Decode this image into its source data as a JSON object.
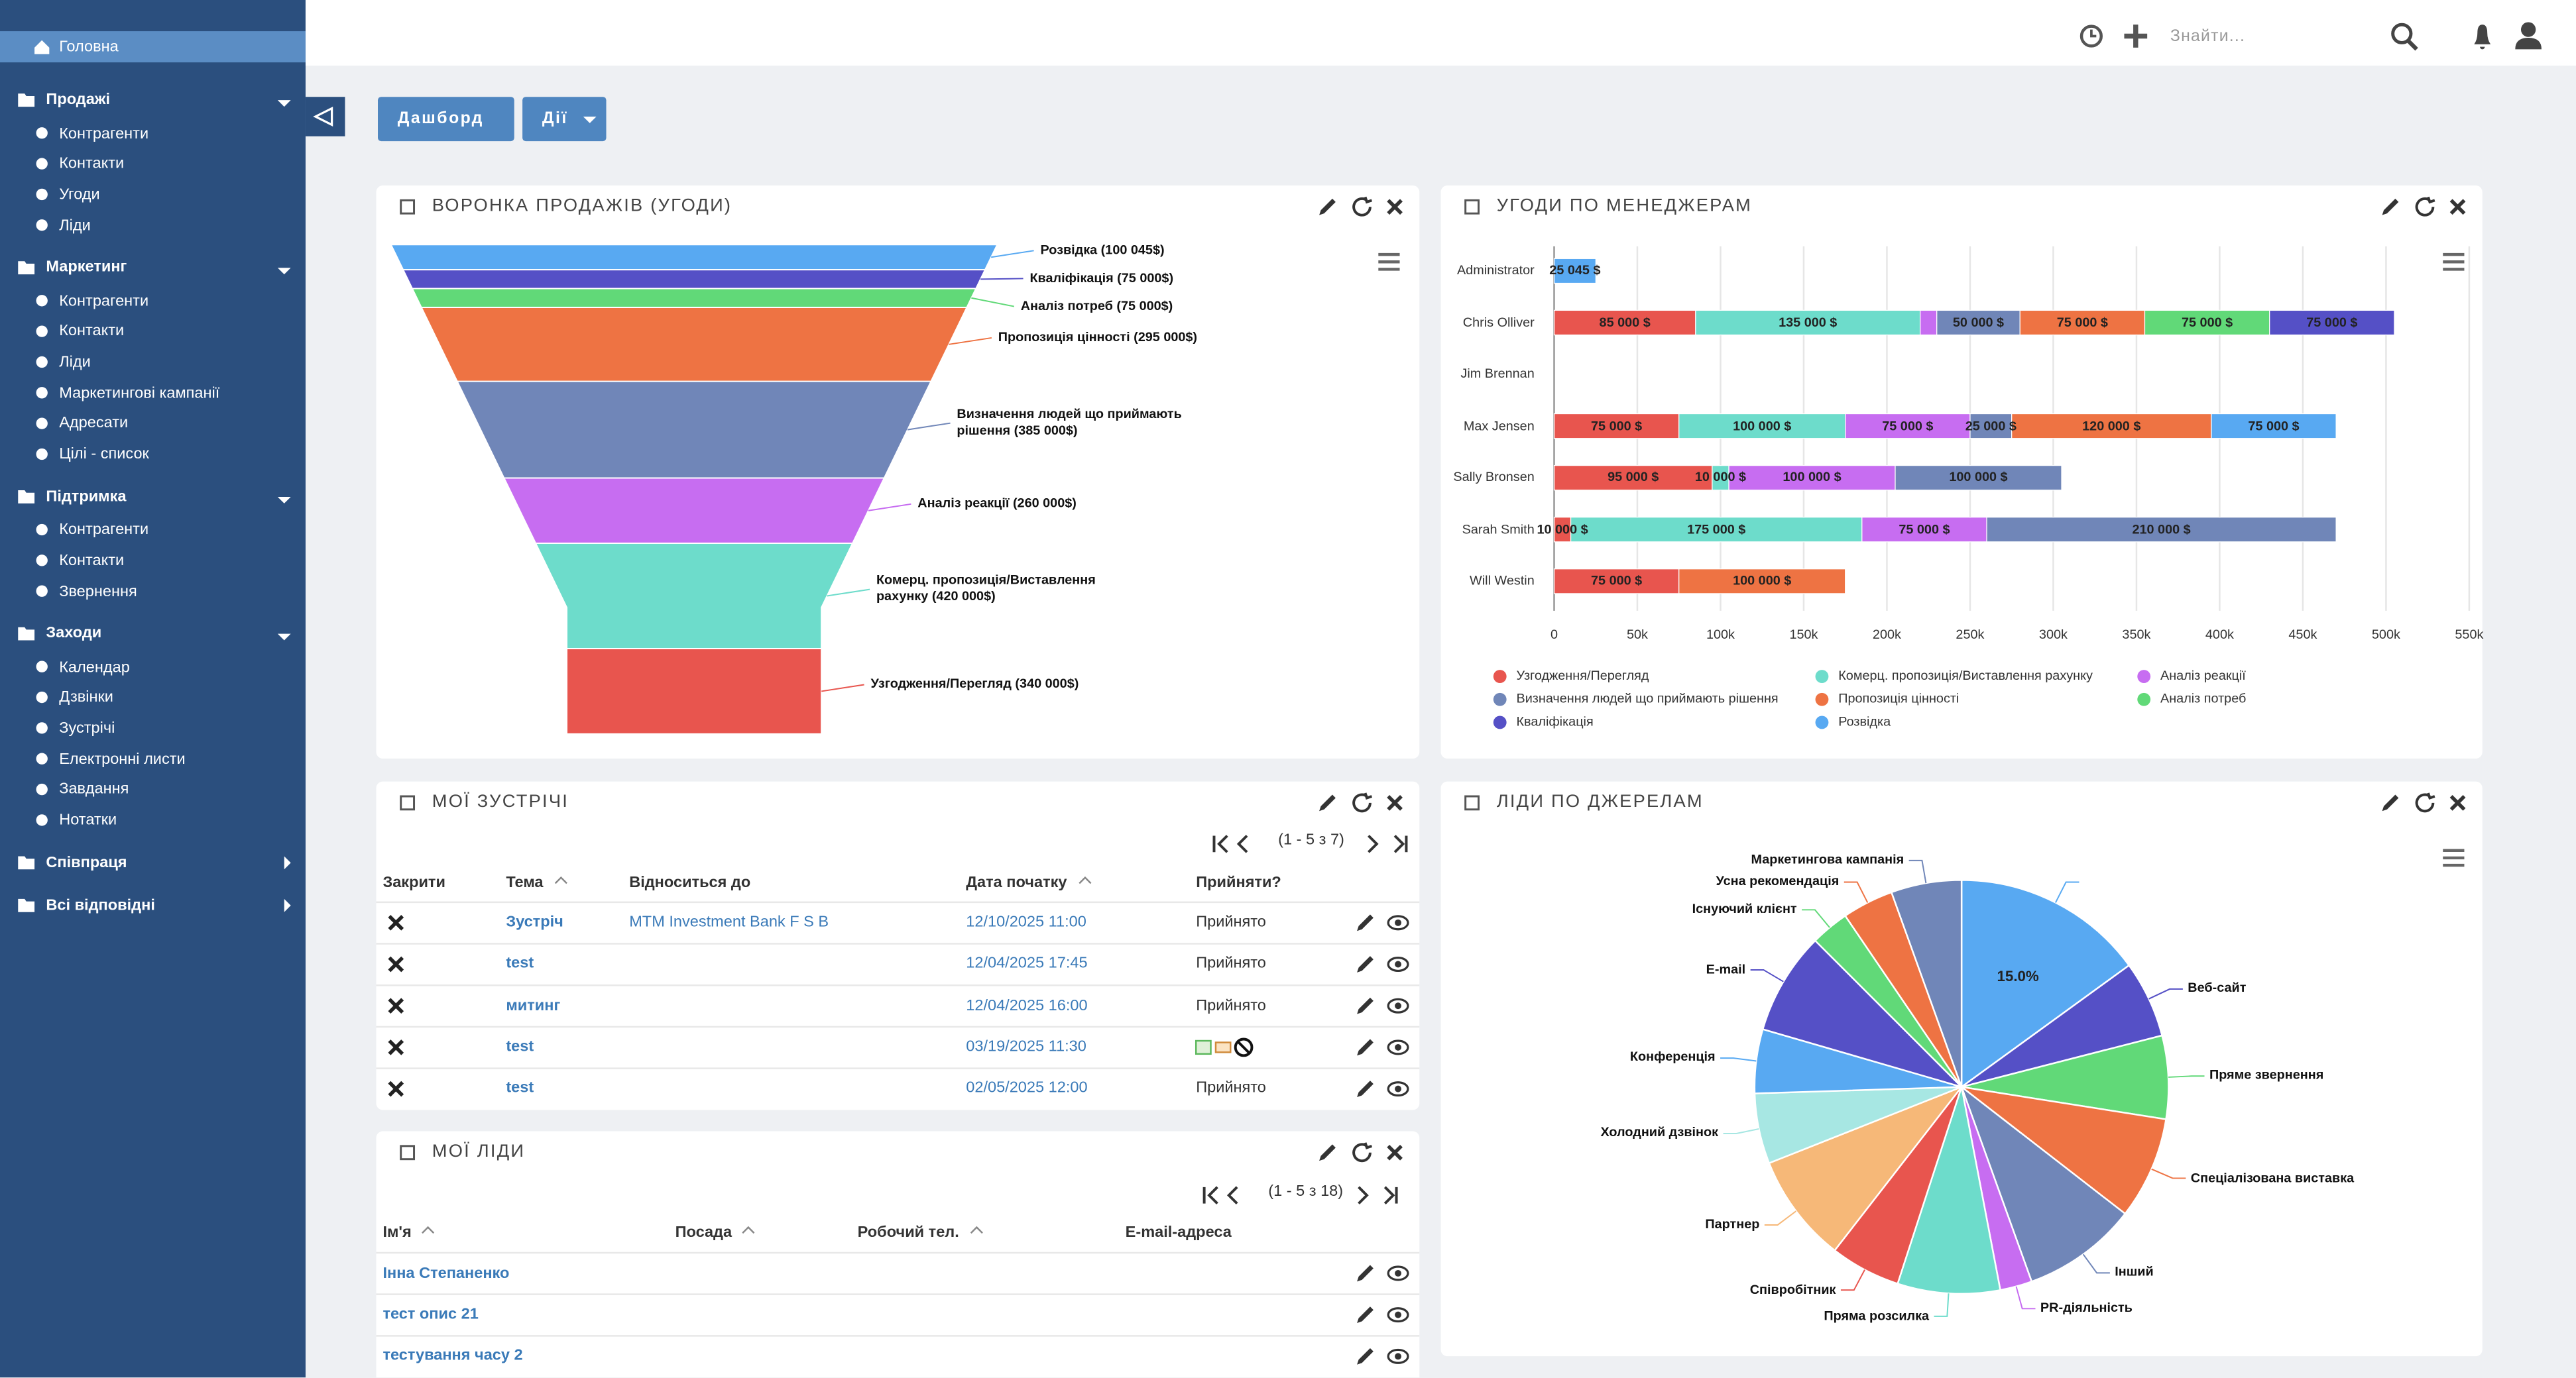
{
  "sidebar": {
    "home": "Головна",
    "groups": [
      {
        "title": "Продажі",
        "items": [
          "Контрагенти",
          "Контакти",
          "Угоди",
          "Ліди"
        ]
      },
      {
        "title": "Маркетинг",
        "items": [
          "Контрагенти",
          "Контакти",
          "Ліди",
          "Маркетингові кампанії",
          "Адресати",
          "Цілі - список"
        ]
      },
      {
        "title": "Підтримка",
        "items": [
          "Контрагенти",
          "Контакти",
          "Звернення"
        ]
      },
      {
        "title": "Заходи",
        "items": [
          "Календар",
          "Дзвінки",
          "Зустрічі",
          "Електронні листи",
          "Завдання",
          "Нотатки"
        ]
      },
      {
        "title": "Співпраця"
      },
      {
        "title": "Всі відповідні"
      }
    ]
  },
  "header": {
    "search_placeholder": "Знайти..."
  },
  "toolbar": {
    "dashboard": "Дашборд",
    "actions": "Дії"
  },
  "sales_funnel": {
    "title": "ВОРОНКА ПРОДАЖІВ (УГОДИ)",
    "chart": {
      "type": "funnel",
      "labels": [
        "Розвідка (100 045$)",
        "Кваліфікація (75 000$)",
        "Аналіз потреб (75 000$)",
        "Пропозиція цінності (295 000$)",
        "Визначення людей що приймають рішення (385 000$)",
        "Аналіз реакції (260 000$)",
        "Комерц. пропозиція/Виставлення рахунку (420 000$)",
        "Узгодження/Перегляд (340 000$)"
      ],
      "values": [
        100045,
        75000,
        75000,
        295000,
        385000,
        260000,
        420000,
        340000
      ],
      "colors": [
        "#58a9f2",
        "#5550c6",
        "#61d978",
        "#ee7343",
        "#7086b8",
        "#c76df1",
        "#6ddccb",
        "#e8554e"
      ]
    }
  },
  "deals_by_manager": {
    "title": "УГОДИ ПО МЕНЕДЖЕРАМ",
    "chart": {
      "type": "bar",
      "orientation": "horizontal",
      "stacked": true,
      "categories": [
        "Administrator",
        "Chris Olliver",
        "Jim Brennan",
        "Max Jensen",
        "Sally Bronsen",
        "Sarah Smith",
        "Will Westin"
      ],
      "series": [
        {
          "name": "Узгодження/Перегляд",
          "color": "#e8554e",
          "values": [
            null,
            85000,
            null,
            75000,
            95000,
            10000,
            75000
          ],
          "value_labels": [
            null,
            "85 000 $",
            null,
            "75 000 $",
            "95 000 $",
            "10 000 $",
            "75 000 $"
          ]
        },
        {
          "name": "Комерц. пропозиція/Виставлення рахунку",
          "color": "#6ddccb",
          "values": [
            null,
            135000,
            null,
            100000,
            10000,
            175000,
            null
          ],
          "value_labels": [
            null,
            "135 000 $",
            null,
            "100 000 $",
            "10 000 $",
            "175 000 $",
            null
          ]
        },
        {
          "name": "Аналіз реакції",
          "color": "#c76df1",
          "values": [
            null,
            10000,
            null,
            75000,
            100000,
            75000,
            null
          ],
          "value_labels": [
            null,
            null,
            null,
            "75 000 $",
            "100 000 $",
            "75 000 $",
            null
          ]
        },
        {
          "name": "Визначення людей що приймають рішення",
          "color": "#7086b8",
          "values": [
            null,
            50000,
            null,
            25000,
            100000,
            210000,
            null
          ],
          "value_labels": [
            null,
            "50 000 $",
            null,
            "25 000 $",
            "100 000 $",
            "210 000 $",
            null
          ]
        },
        {
          "name": "Пропозиція цінності",
          "color": "#ee7343",
          "values": [
            null,
            75000,
            null,
            120000,
            null,
            null,
            100000
          ],
          "value_labels": [
            null,
            "75 000 $",
            null,
            "120 000 $",
            null,
            null,
            "100 000 $"
          ]
        },
        {
          "name": "Аналіз потреб",
          "color": "#61d978",
          "values": [
            null,
            75000,
            null,
            null,
            null,
            null,
            null
          ],
          "value_labels": [
            null,
            "75 000 $",
            null,
            null,
            null,
            null,
            null
          ]
        },
        {
          "name": "Кваліфікація",
          "color": "#5550c6",
          "values": [
            null,
            75000,
            null,
            null,
            null,
            null,
            null
          ],
          "value_labels": [
            null,
            "75 000 $",
            null,
            null,
            null,
            null,
            null
          ]
        },
        {
          "name": "Розвідка",
          "color": "#58a9f2",
          "values": [
            25045,
            null,
            null,
            75000,
            null,
            null,
            null
          ],
          "value_labels": [
            "25 045 $",
            null,
            null,
            "75 000 $",
            null,
            null,
            null
          ]
        }
      ],
      "xlim": [
        0,
        550000
      ],
      "xticks": [
        0,
        {
          "value": 50000,
          "label": "50k"
        },
        {
          "value": 100000,
          "label": "100k"
        },
        {
          "value": 150000,
          "label": "150k"
        },
        {
          "value": 200000,
          "label": "200k"
        },
        {
          "value": 250000,
          "label": "250k"
        },
        {
          "value": 300000,
          "label": "300k"
        },
        {
          "value": 350000,
          "label": "350k"
        },
        {
          "value": 400000,
          "label": "400k"
        },
        {
          "value": 450000,
          "label": "450k"
        },
        {
          "value": 500000,
          "label": "500k"
        },
        {
          "value": 550000,
          "label": "550k"
        }
      ],
      "grid": true
    }
  },
  "leads_by_source": {
    "title": "ЛІДИ ПО ДЖЕРЕЛАМ",
    "chart": {
      "type": "pie",
      "categories": [
        null,
        "Веб-сайт",
        "Пряме звернення",
        "Спеціалізована виставка",
        "Інший",
        "PR-діяльність",
        "Пряма розсилка",
        "Співробітник",
        "Партнер",
        "Холодний дзвінок",
        "Конференція",
        "E-mail",
        "Існуючий клієнт",
        "Усна рекомендація",
        "Маркетингова кампанія"
      ],
      "values": [
        15,
        6,
        6.5,
        8,
        9,
        2.5,
        8,
        5.5,
        8.5,
        5.5,
        5,
        8,
        3,
        4,
        5.5
      ],
      "value_labels": [
        "15.0%",
        null,
        null,
        null,
        null,
        null,
        null,
        null,
        null,
        null,
        null,
        null,
        null,
        null,
        null
      ],
      "colors": [
        "#58a9f2",
        "#5550c6",
        "#61d978",
        "#ee7343",
        "#7086b8",
        "#c76df1",
        "#6ddccb",
        "#e8554e",
        "#f6b878",
        "#a7e7e3",
        "#58a9f2",
        "#5550c6",
        "#61d978",
        "#ee7343",
        "#7086b8"
      ]
    }
  },
  "meetings": {
    "title": "МОЇ ЗУСТРІЧІ",
    "pagination": "(1 - 5 з 7)",
    "columns": [
      "Закрити",
      "Тема",
      "Відноситься до",
      "Дата початку",
      "Прийняти?"
    ],
    "rows": [
      [
        "Зустріч",
        "MTM Investment Bank F S B",
        "12/10/2025 11:00",
        "Прийнято"
      ],
      [
        "test",
        null,
        "12/04/2025 17:45",
        "Прийнято"
      ],
      [
        "митинг",
        null,
        "12/04/2025 16:00",
        "Прийнято"
      ],
      [
        "test",
        null,
        "03/19/2025 11:30",
        null
      ],
      [
        "test",
        null,
        "02/05/2025 12:00",
        "Прийнято"
      ]
    ]
  },
  "leads": {
    "title": "МОЇ ЛІДИ",
    "pagination": "(1 - 5 з 18)",
    "columns": [
      "Ім'я",
      "Посада",
      "Робочий тел.",
      "E-mail-адреса"
    ],
    "rows": [
      [
        "Інна Степаненко"
      ],
      [
        "тест опис 21"
      ],
      [
        "тестування часу 2"
      ]
    ]
  }
}
